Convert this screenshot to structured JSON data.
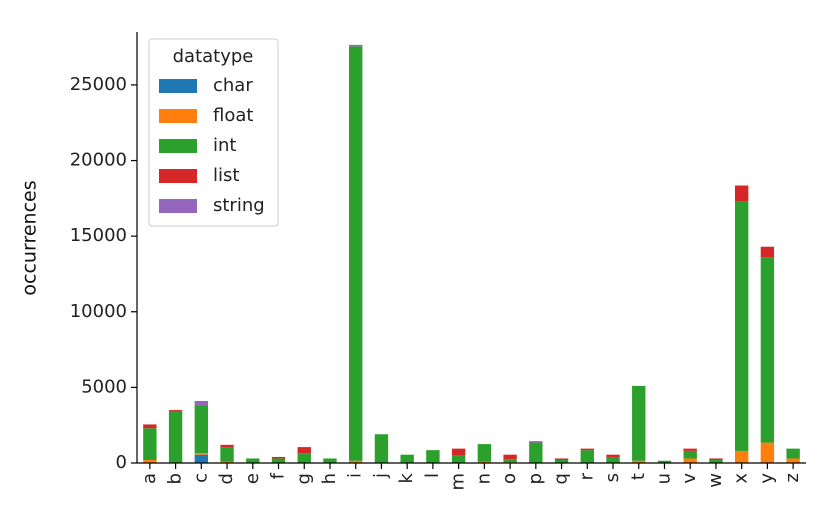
{
  "chart_data": {
    "type": "bar",
    "stacked": true,
    "title": "",
    "xlabel": "",
    "ylabel": "occurrences",
    "ylim": [
      0,
      28500
    ],
    "yticks": [
      0,
      5000,
      10000,
      15000,
      20000,
      25000
    ],
    "categories": [
      "a",
      "b",
      "c",
      "d",
      "e",
      "f",
      "g",
      "h",
      "i",
      "j",
      "k",
      "l",
      "m",
      "n",
      "o",
      "p",
      "q",
      "r",
      "s",
      "t",
      "u",
      "v",
      "w",
      "x",
      "y",
      "z"
    ],
    "legend": {
      "title": "datatype",
      "position": "upper-left"
    },
    "grid": false,
    "series": [
      {
        "name": "char",
        "color": "#1f77b4",
        "values": [
          0,
          0,
          550,
          0,
          0,
          0,
          0,
          0,
          0,
          0,
          0,
          0,
          0,
          0,
          0,
          0,
          0,
          0,
          0,
          0,
          0,
          0,
          0,
          0,
          0,
          0
        ]
      },
      {
        "name": "float",
        "color": "#ff7f0e",
        "values": [
          200,
          0,
          100,
          100,
          0,
          0,
          0,
          0,
          150,
          0,
          0,
          0,
          0,
          100,
          50,
          0,
          0,
          0,
          0,
          150,
          0,
          300,
          0,
          800,
          1350,
          300
        ]
      },
      {
        "name": "int",
        "color": "#2ca02c",
        "values": [
          2100,
          3400,
          3150,
          950,
          300,
          300,
          650,
          300,
          27400,
          1900,
          550,
          850,
          500,
          1150,
          200,
          1350,
          200,
          850,
          400,
          4950,
          150,
          500,
          200,
          16500,
          12250,
          650
        ]
      },
      {
        "name": "list",
        "color": "#d62728",
        "values": [
          250,
          100,
          0,
          150,
          0,
          100,
          400,
          0,
          0,
          0,
          0,
          0,
          450,
          0,
          300,
          0,
          100,
          100,
          150,
          0,
          0,
          150,
          100,
          1050,
          700,
          0
        ]
      },
      {
        "name": "string",
        "color": "#9467bd",
        "values": [
          0,
          0,
          300,
          0,
          0,
          0,
          0,
          0,
          100,
          0,
          0,
          0,
          0,
          0,
          0,
          100,
          0,
          0,
          0,
          0,
          0,
          0,
          0,
          0,
          0,
          0
        ]
      }
    ]
  }
}
